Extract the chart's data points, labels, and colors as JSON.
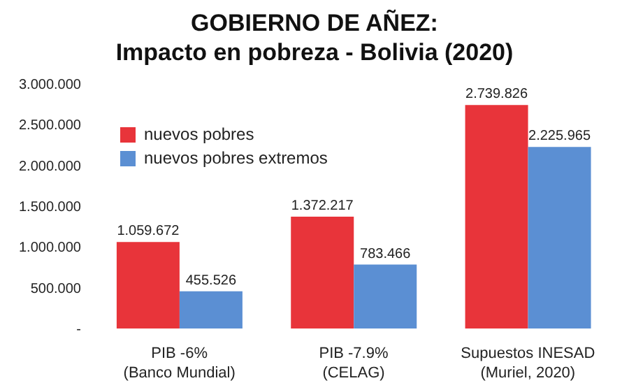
{
  "chart_data": {
    "type": "bar",
    "title": "GOBIERNO DE AÑEZ:\nImpacto en pobreza - Bolivia (2020)",
    "categories": [
      "PIB -6%\n(Banco Mundial)",
      "PIB -7.9%\n(CELAG)",
      "Supuestos INESAD\n(Muriel, 2020)"
    ],
    "series": [
      {
        "name": "nuevos pobres",
        "color": "#e8343a",
        "values": [
          1059672,
          1372217,
          2739826
        ],
        "value_labels": [
          "1.059.672",
          "1.372.217",
          "2.739.826"
        ]
      },
      {
        "name": "nuevos pobres extremos",
        "color": "#5b8fd3",
        "values": [
          455526,
          783466,
          2225965
        ],
        "value_labels": [
          "455.526",
          "783.466",
          "2.225.965"
        ]
      }
    ],
    "ylim": [
      0,
      3000000
    ],
    "yticks": [
      {
        "value": 0,
        "label": "-"
      },
      {
        "value": 500000,
        "label": "500.000"
      },
      {
        "value": 1000000,
        "label": "1.000.000"
      },
      {
        "value": 1500000,
        "label": "1.500.000"
      },
      {
        "value": 2000000,
        "label": "2.000.000"
      },
      {
        "value": 2500000,
        "label": "2.500.000"
      },
      {
        "value": 3000000,
        "label": "3.000.000"
      }
    ],
    "grid": false,
    "legend": "top left"
  }
}
